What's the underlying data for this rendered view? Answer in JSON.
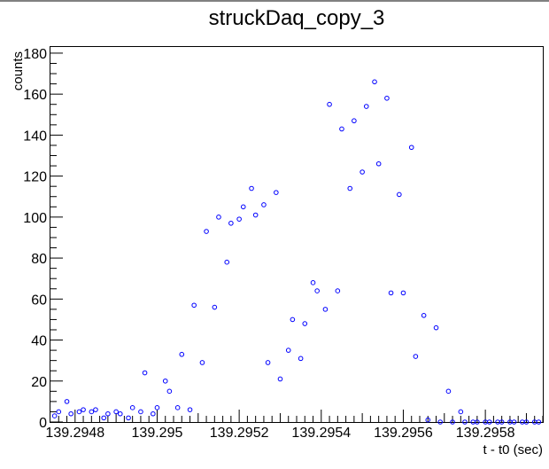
{
  "chart_data": {
    "type": "scatter",
    "title": "struckDaq_copy_3",
    "xlabel": "t - t0 (sec)",
    "ylabel": "counts",
    "xlim": [
      139.29474,
      139.29594
    ],
    "ylim": [
      0,
      183
    ],
    "x_ticks": [
      139.2948,
      139.295,
      139.2952,
      139.2954,
      139.2956,
      139.2958
    ],
    "x_tick_labels": [
      "139.2948",
      "139.295",
      "139.2952",
      "139.2954",
      "139.2956",
      "139.2958"
    ],
    "y_ticks": [
      0,
      20,
      40,
      60,
      80,
      100,
      120,
      140,
      160,
      180
    ],
    "y_tick_labels": [
      "0",
      "20",
      "40",
      "60",
      "80",
      "100",
      "120",
      "140",
      "160",
      "180"
    ],
    "grid": false,
    "legend": "none",
    "marker_color": "#0000ff",
    "series": [
      {
        "x": [
          139.29475,
          139.29478,
          139.29481,
          139.29484,
          139.29487,
          139.2949,
          139.29493,
          139.29496,
          139.29499,
          139.29502,
          139.29505,
          139.29508,
          139.29511,
          139.29514,
          139.29517,
          139.2952,
          139.29523,
          139.29526,
          139.29529,
          139.29532,
          139.29535,
          139.29538,
          139.29541,
          139.29544,
          139.29547,
          139.2955,
          139.29553,
          139.29556,
          139.29559,
          139.29562,
          139.29565,
          139.29568,
          139.29571,
          139.29574,
          139.29577,
          139.2958,
          139.29583,
          139.29586,
          139.29589,
          139.29592,
          139.29476,
          139.29479,
          139.29482,
          139.29485,
          139.29488,
          139.29491,
          139.29494,
          139.29497,
          139.295,
          139.29503,
          139.29506,
          139.29509,
          139.29512,
          139.29515,
          139.29518,
          139.29521,
          139.29524,
          139.29527,
          139.2953,
          139.29533,
          139.29536,
          139.29539,
          139.29542,
          139.29545,
          139.29548,
          139.29551,
          139.29554,
          139.29557,
          139.2956,
          139.29563,
          139.29566,
          139.29569,
          139.29572,
          139.29575,
          139.29578,
          139.29581,
          139.29584,
          139.29587,
          139.2959,
          139.29593
        ],
        "y": [
          3,
          10,
          5,
          5,
          2,
          5,
          2,
          5,
          4,
          20,
          7,
          6,
          29,
          56,
          78,
          99,
          114,
          106,
          112,
          35,
          31,
          68,
          55,
          64,
          114,
          122,
          166,
          158,
          111,
          134,
          52,
          46,
          15,
          5,
          0,
          0,
          0,
          0,
          0,
          0,
          5,
          4,
          6,
          6,
          4,
          4,
          7,
          24,
          7,
          15,
          33,
          57,
          93,
          100,
          97,
          105,
          101,
          29,
          21,
          50,
          48,
          64,
          155,
          143,
          147,
          154,
          126,
          63,
          63,
          32,
          1,
          0,
          0,
          0,
          0,
          0,
          0,
          0,
          0,
          0
        ]
      }
    ]
  }
}
